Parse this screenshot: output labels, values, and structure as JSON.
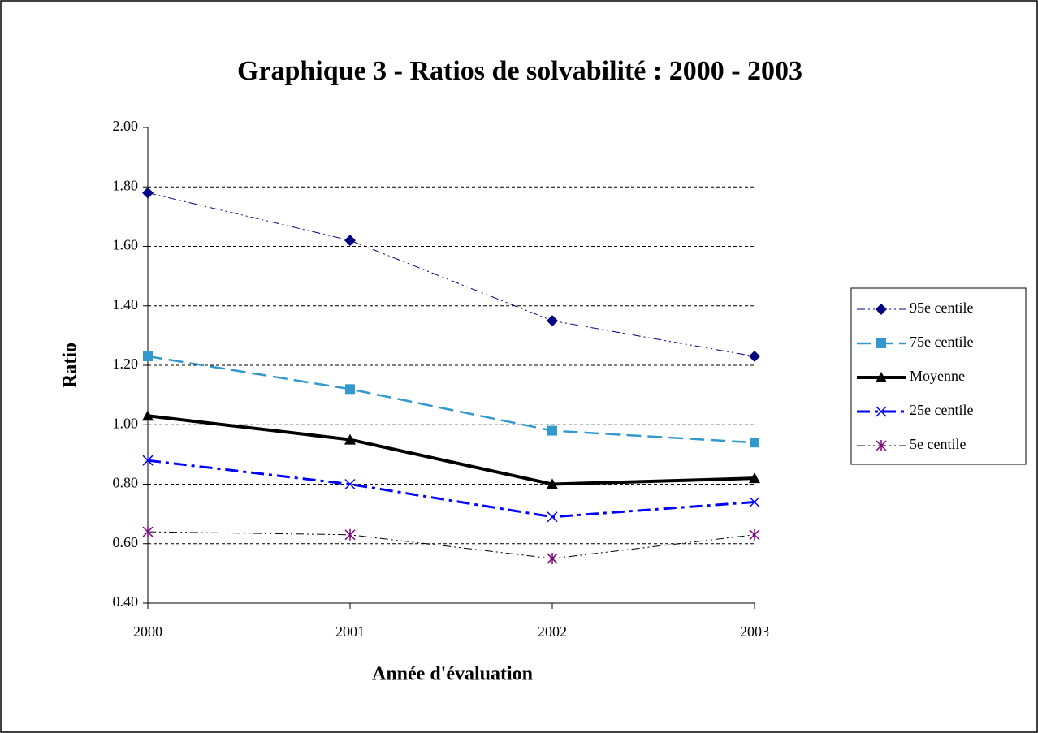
{
  "chart_data": {
    "type": "line",
    "title": "Graphique 3 - Ratios de solvabilité : 2000 - 2003",
    "x_label": "Année d'évaluation",
    "y_label": "Ratio",
    "categories": [
      "2000",
      "2001",
      "2002",
      "2003"
    ],
    "series": [
      {
        "name": "95e centile",
        "color": "#000080",
        "marker_color": "#000080",
        "marker": "diamond",
        "dash": "10 4 2 4 2 4",
        "width": 1,
        "values": [
          1.78,
          1.62,
          1.35,
          1.23
        ]
      },
      {
        "name": "75e centile",
        "color": "#3399cc",
        "marker_color": "#3399cc",
        "marker": "square",
        "dash": "18 8",
        "width": 2.5,
        "values": [
          1.23,
          1.12,
          0.98,
          0.94
        ]
      },
      {
        "name": "Moyenne",
        "color": "#000000",
        "marker_color": "#000000",
        "marker": "triangle",
        "dash": "none",
        "width": 4,
        "values": [
          1.03,
          0.95,
          0.8,
          0.82
        ]
      },
      {
        "name": "25e centile",
        "color": "#0000ff",
        "marker_color": "#0000ff",
        "marker": "x",
        "dash": "16 6 4 6",
        "width": 3,
        "values": [
          0.88,
          0.8,
          0.69,
          0.74
        ]
      },
      {
        "name": "5e centile",
        "color": "#000000",
        "marker_color": "#800080",
        "marker": "asterisk",
        "dash": "10 4 2 4 2 4",
        "width": 1,
        "values": [
          0.64,
          0.63,
          0.55,
          0.63
        ]
      }
    ],
    "ylim": [
      0.4,
      2.0
    ],
    "yticks": [
      {
        "value": 0.4,
        "label": "0.40"
      },
      {
        "value": 0.6,
        "label": "0.60"
      },
      {
        "value": 0.8,
        "label": "0.80"
      },
      {
        "value": 1.0,
        "label": "1.00"
      },
      {
        "value": 1.2,
        "label": "1.20"
      },
      {
        "value": 1.4,
        "label": "1.40"
      },
      {
        "value": 1.6,
        "label": "1.60"
      },
      {
        "value": 1.8,
        "label": "1.80"
      },
      {
        "value": 2.0,
        "label": "2.00"
      }
    ],
    "grid": true,
    "legend": "right"
  }
}
